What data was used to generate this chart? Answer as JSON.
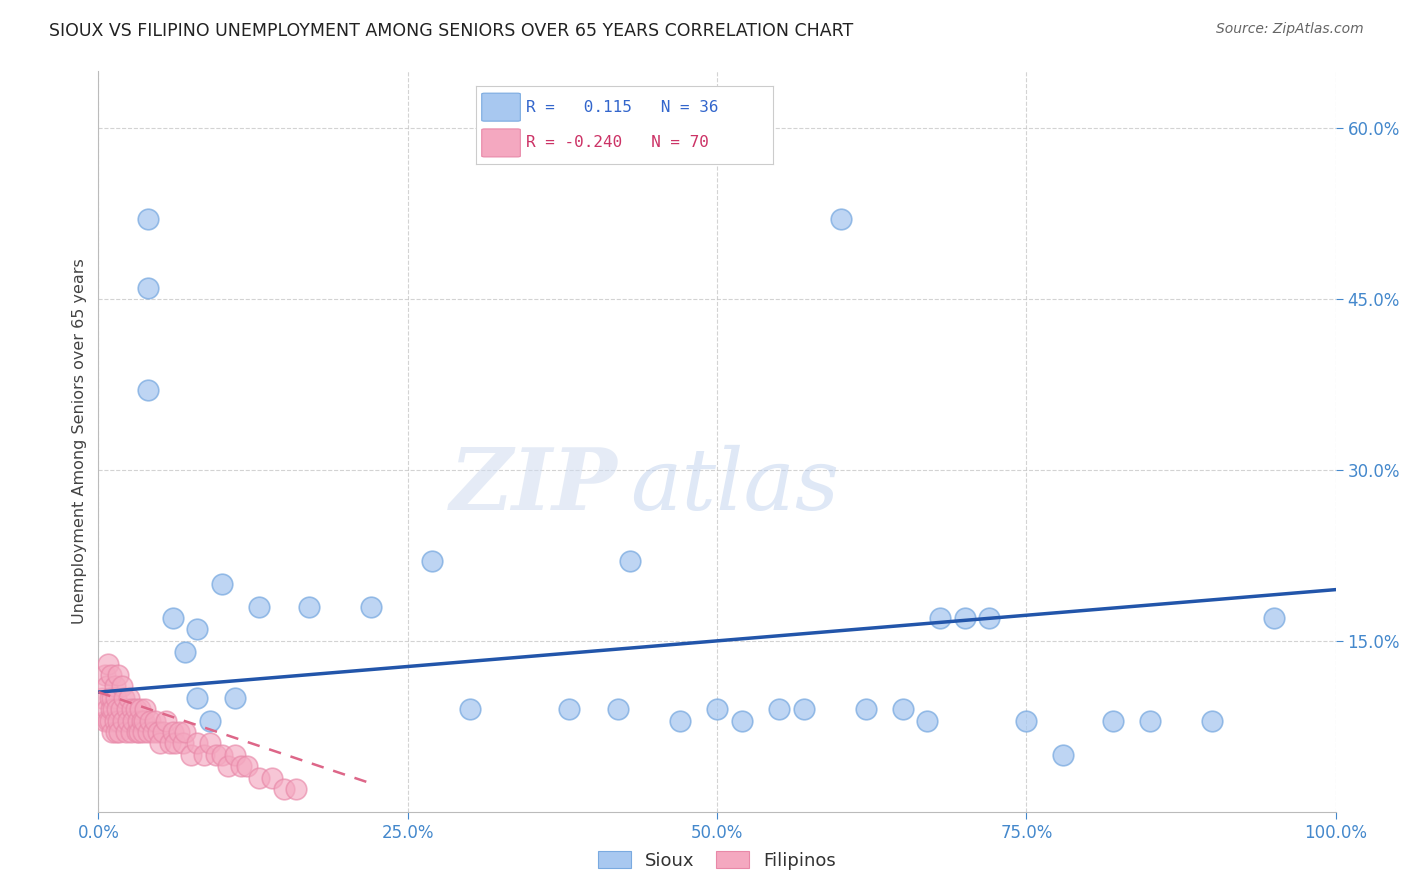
{
  "title": "SIOUX VS FILIPINO UNEMPLOYMENT AMONG SENIORS OVER 65 YEARS CORRELATION CHART",
  "source": "Source: ZipAtlas.com",
  "ylabel": "Unemployment Among Seniors over 65 years",
  "xlim": [
    0.0,
    1.0
  ],
  "ylim": [
    0.0,
    0.65
  ],
  "xticks": [
    0.0,
    0.25,
    0.5,
    0.75,
    1.0
  ],
  "xticklabels": [
    "0.0%",
    "25.0%",
    "50.0%",
    "75.0%",
    "100.0%"
  ],
  "yticks": [
    0.15,
    0.3,
    0.45,
    0.6
  ],
  "yticklabels": [
    "15.0%",
    "30.0%",
    "45.0%",
    "60.0%"
  ],
  "sioux_R": 0.115,
  "sioux_N": 36,
  "filipino_R": -0.24,
  "filipino_N": 70,
  "sioux_color": "#a8c8f0",
  "sioux_edge_color": "#7aaae0",
  "filipino_color": "#f4a8c0",
  "filipino_edge_color": "#e888a8",
  "sioux_line_color": "#2255aa",
  "filipino_line_color": "#dd6688",
  "watermark_zip": "ZIP",
  "watermark_atlas": "atlas",
  "background_color": "#ffffff",
  "grid_color": "#c8c8c8",
  "tick_color": "#4488cc",
  "sioux_x": [
    0.04,
    0.04,
    0.04,
    0.06,
    0.07,
    0.08,
    0.08,
    0.09,
    0.1,
    0.11,
    0.13,
    0.17,
    0.22,
    0.27,
    0.3,
    0.38,
    0.42,
    0.43,
    0.47,
    0.5,
    0.52,
    0.55,
    0.57,
    0.6,
    0.62,
    0.65,
    0.67,
    0.68,
    0.7,
    0.72,
    0.75,
    0.78,
    0.82,
    0.85,
    0.9,
    0.95
  ],
  "sioux_y": [
    0.52,
    0.46,
    0.37,
    0.17,
    0.14,
    0.16,
    0.1,
    0.08,
    0.2,
    0.1,
    0.18,
    0.18,
    0.18,
    0.22,
    0.09,
    0.09,
    0.09,
    0.22,
    0.08,
    0.09,
    0.08,
    0.09,
    0.09,
    0.52,
    0.09,
    0.09,
    0.08,
    0.17,
    0.17,
    0.17,
    0.08,
    0.05,
    0.08,
    0.08,
    0.08,
    0.17
  ],
  "filipino_x": [
    0.003,
    0.005,
    0.005,
    0.007,
    0.007,
    0.008,
    0.008,
    0.009,
    0.009,
    0.01,
    0.01,
    0.011,
    0.011,
    0.012,
    0.013,
    0.013,
    0.014,
    0.014,
    0.015,
    0.016,
    0.016,
    0.017,
    0.018,
    0.019,
    0.02,
    0.021,
    0.022,
    0.023,
    0.024,
    0.025,
    0.026,
    0.027,
    0.028,
    0.03,
    0.031,
    0.032,
    0.033,
    0.034,
    0.035,
    0.036,
    0.037,
    0.038,
    0.04,
    0.042,
    0.044,
    0.046,
    0.048,
    0.05,
    0.052,
    0.055,
    0.058,
    0.06,
    0.062,
    0.065,
    0.068,
    0.07,
    0.075,
    0.08,
    0.085,
    0.09,
    0.095,
    0.1,
    0.105,
    0.11,
    0.115,
    0.12,
    0.13,
    0.14,
    0.15,
    0.16
  ],
  "filipino_y": [
    0.1,
    0.08,
    0.12,
    0.09,
    0.11,
    0.08,
    0.13,
    0.1,
    0.08,
    0.09,
    0.12,
    0.07,
    0.1,
    0.09,
    0.08,
    0.11,
    0.07,
    0.1,
    0.09,
    0.08,
    0.12,
    0.07,
    0.09,
    0.11,
    0.08,
    0.1,
    0.07,
    0.09,
    0.08,
    0.1,
    0.07,
    0.09,
    0.08,
    0.09,
    0.07,
    0.08,
    0.07,
    0.09,
    0.08,
    0.07,
    0.08,
    0.09,
    0.07,
    0.08,
    0.07,
    0.08,
    0.07,
    0.06,
    0.07,
    0.08,
    0.06,
    0.07,
    0.06,
    0.07,
    0.06,
    0.07,
    0.05,
    0.06,
    0.05,
    0.06,
    0.05,
    0.05,
    0.04,
    0.05,
    0.04,
    0.04,
    0.03,
    0.03,
    0.02,
    0.02
  ],
  "sioux_line_x0": 0.0,
  "sioux_line_y0": 0.105,
  "sioux_line_x1": 1.0,
  "sioux_line_y1": 0.195,
  "filipino_line_x0": 0.0,
  "filipino_line_y0": 0.105,
  "filipino_line_x1": 0.22,
  "filipino_line_y1": 0.025
}
